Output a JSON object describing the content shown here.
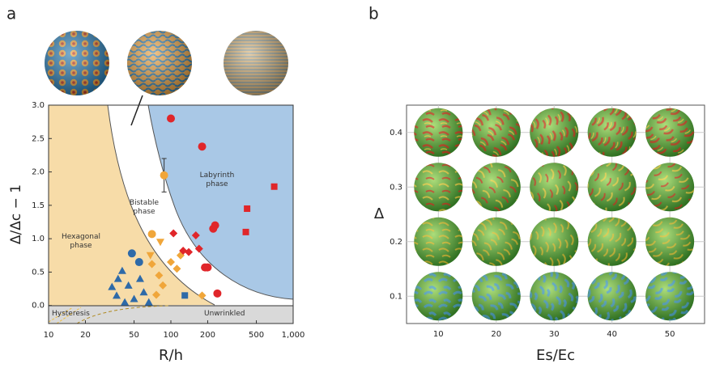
{
  "chart_data": [
    {
      "type": "scatter",
      "panel_label": "a",
      "xlabel": "R/h",
      "ylabel": "Δ/Δc − 1",
      "xscale": "log",
      "xlim": [
        10,
        1000
      ],
      "xticks": [
        10,
        20,
        50,
        100,
        200,
        500,
        {
          "value": 1000,
          "label": "1,000"
        }
      ],
      "ylim": [
        -0.27,
        3.0
      ],
      "yticks": [
        {
          "value": 0,
          "label": "0.0"
        },
        0.5,
        {
          "value": 1,
          "label": "1.0"
        },
        1.5,
        {
          "value": 2,
          "label": "2.0"
        },
        2.5,
        {
          "value": 3,
          "label": "3.0"
        }
      ],
      "annotations": [
        "Hexagonal phase",
        "Bistable phase",
        "Labyrinth phase",
        "Hysteresis",
        "Unwrinkled"
      ],
      "series": [
        {
          "marker": "triangle",
          "color": "#2e6aa8",
          "x": [
            33,
            36,
            37,
            42,
            45,
            50,
            56,
            60,
            66,
            40
          ],
          "values": [
            0.28,
            0.15,
            0.4,
            0.05,
            0.3,
            0.1,
            0.4,
            0.2,
            0.05,
            0.52
          ]
        },
        {
          "marker": "circle",
          "color": "#2e6aa8",
          "x": [
            48,
            55
          ],
          "values": [
            0.78,
            0.65
          ]
        },
        {
          "marker": "square",
          "color": "#2e6aa8",
          "x": [
            130
          ],
          "values": [
            0.15
          ]
        },
        {
          "marker": "circle",
          "color": "#f0a63a",
          "x": [
            70,
            88
          ],
          "values": [
            1.07,
            1.95
          ],
          "errors": [
            null,
            0.25
          ]
        },
        {
          "marker": "triangle-down",
          "color": "#f0a63a",
          "x": [
            68,
            82
          ],
          "values": [
            0.75,
            0.95
          ]
        },
        {
          "marker": "diamond",
          "color": "#f0a63a",
          "x": [
            70,
            80,
            86,
            76,
            100,
            120,
            112,
            180
          ],
          "values": [
            0.62,
            0.45,
            0.3,
            0.16,
            0.65,
            0.75,
            0.55,
            0.15
          ]
        },
        {
          "marker": "circle",
          "color": "#e0262a",
          "x": [
            100,
            180,
            230,
            222,
            190,
            200,
            240
          ],
          "values": [
            2.8,
            2.38,
            1.2,
            1.15,
            0.57,
            0.57,
            0.18
          ]
        },
        {
          "marker": "diamond",
          "color": "#e0262a",
          "x": [
            105,
            160,
            170,
            140,
            126
          ],
          "values": [
            1.08,
            1.05,
            0.85,
            0.8,
            0.82
          ]
        },
        {
          "marker": "square",
          "color": "#e0262a",
          "x": [
            700,
            420,
            410
          ],
          "values": [
            1.78,
            1.45,
            1.1
          ]
        }
      ]
    },
    {
      "type": "image-grid",
      "panel_label": "b",
      "xlabel": "Es/Ec",
      "ylabel": "Δ",
      "xlim": [
        4.5,
        56
      ],
      "xticks": [
        10,
        20,
        30,
        40,
        50
      ],
      "ylim": [
        0.05,
        0.45
      ],
      "yticks": [
        0.1,
        0.2,
        0.3,
        0.4
      ],
      "grid": true
    }
  ]
}
